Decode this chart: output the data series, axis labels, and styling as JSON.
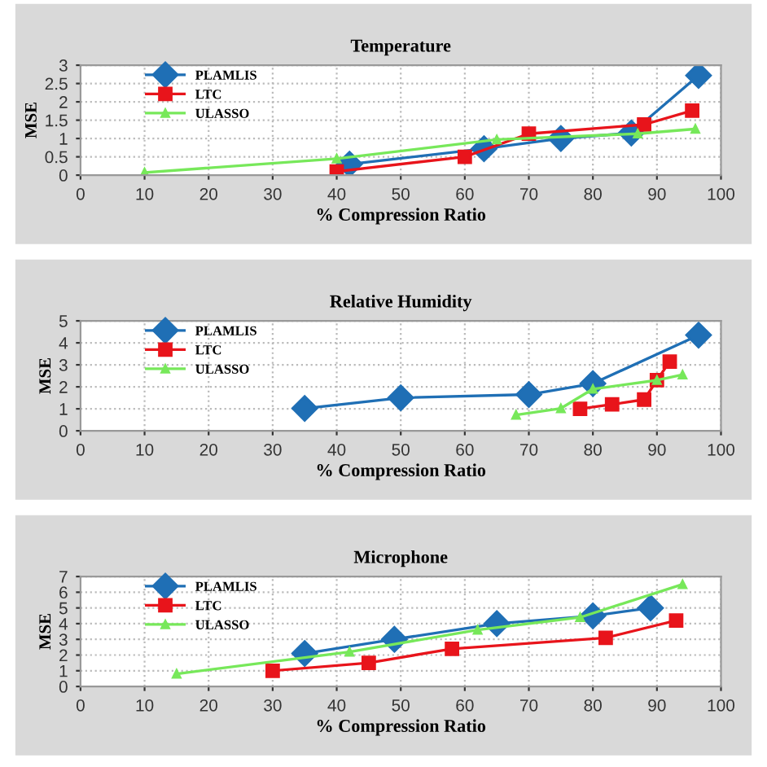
{
  "chart_data": [
    {
      "type": "line",
      "title": "Temperature",
      "xlabel": "% Compression Ratio",
      "ylabel": "MSE",
      "xlim": [
        0,
        100
      ],
      "ylim": [
        0,
        3
      ],
      "xticks": [
        0,
        10,
        20,
        30,
        40,
        50,
        60,
        70,
        80,
        90,
        100
      ],
      "yticks": [
        0,
        0.5,
        1,
        1.5,
        2,
        2.5,
        3
      ],
      "grid": true,
      "legend": "top left",
      "series": [
        {
          "name": "PLAMLIS",
          "color": "#1f6fb5",
          "marker": "diamond",
          "x": [
            42,
            63,
            75,
            86,
            96.5
          ],
          "values": [
            0.3,
            0.72,
            1.0,
            1.15,
            2.72
          ]
        },
        {
          "name": "LTC",
          "color": "#e8141b",
          "marker": "square",
          "x": [
            40,
            60,
            70,
            88,
            95.5
          ],
          "values": [
            0.1,
            0.5,
            1.13,
            1.38,
            1.76
          ]
        },
        {
          "name": "ULASSO",
          "color": "#77e85a",
          "marker": "triangle",
          "x": [
            10,
            40,
            65,
            87,
            96
          ],
          "values": [
            0.07,
            0.45,
            0.97,
            1.13,
            1.26
          ]
        }
      ]
    },
    {
      "type": "line",
      "title": "Relative Humidity",
      "xlabel": "% Compression Ratio",
      "ylabel": "MSE",
      "xlim": [
        0,
        100
      ],
      "ylim": [
        0,
        5
      ],
      "xticks": [
        0,
        10,
        20,
        30,
        40,
        50,
        60,
        70,
        80,
        90,
        100
      ],
      "yticks": [
        0,
        1,
        2,
        3,
        4,
        5
      ],
      "grid": true,
      "legend": "top left",
      "series": [
        {
          "name": "PLAMLIS",
          "color": "#1f6fb5",
          "marker": "diamond",
          "x": [
            35,
            50,
            70,
            80,
            96.5
          ],
          "values": [
            1.02,
            1.5,
            1.65,
            2.15,
            4.35
          ]
        },
        {
          "name": "LTC",
          "color": "#e8141b",
          "marker": "square",
          "x": [
            78,
            83,
            88,
            90,
            92
          ],
          "values": [
            1.0,
            1.2,
            1.42,
            2.3,
            3.15
          ]
        },
        {
          "name": "ULASSO",
          "color": "#77e85a",
          "marker": "triangle",
          "x": [
            68,
            75,
            80,
            90,
            94
          ],
          "values": [
            0.72,
            1.02,
            1.9,
            2.3,
            2.55
          ]
        }
      ]
    },
    {
      "type": "line",
      "title": "Microphone",
      "xlabel": "% Compression Ratio",
      "ylabel": "MSE",
      "xlim": [
        0,
        100
      ],
      "ylim": [
        0,
        7
      ],
      "xticks": [
        0,
        10,
        20,
        30,
        40,
        50,
        60,
        70,
        80,
        90,
        100
      ],
      "yticks": [
        0,
        1,
        2,
        3,
        4,
        5,
        6,
        7
      ],
      "grid": true,
      "legend": "top left",
      "series": [
        {
          "name": "PLAMLIS",
          "color": "#1f6fb5",
          "marker": "diamond",
          "x": [
            35,
            49,
            65,
            80,
            89
          ],
          "values": [
            2.1,
            3.0,
            4.0,
            4.5,
            5.0
          ]
        },
        {
          "name": "LTC",
          "color": "#e8141b",
          "marker": "square",
          "x": [
            30,
            45,
            58,
            82,
            93
          ],
          "values": [
            1.0,
            1.5,
            2.4,
            3.1,
            4.2
          ]
        },
        {
          "name": "ULASSO",
          "color": "#77e85a",
          "marker": "triangle",
          "x": [
            15,
            42,
            62,
            78,
            94
          ],
          "values": [
            0.8,
            2.2,
            3.6,
            4.4,
            6.5
          ]
        }
      ]
    }
  ]
}
